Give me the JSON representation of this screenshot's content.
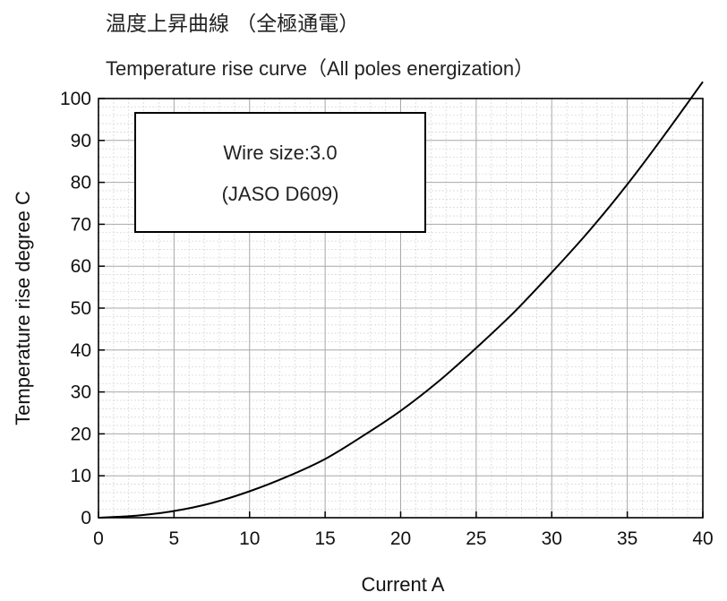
{
  "chart_data": {
    "type": "line",
    "title_jp": "温度上昇曲線 （全極通電）",
    "title": "Temperature rise curve（All poles energization）",
    "xlabel": "Current  A",
    "ylabel": "Temperature rise  degree C",
    "xlim": [
      0,
      40
    ],
    "ylim": [
      0,
      100
    ],
    "xticks": [
      0,
      5,
      10,
      15,
      20,
      25,
      30,
      35,
      40
    ],
    "yticks": [
      0,
      10,
      20,
      30,
      40,
      50,
      60,
      70,
      80,
      90,
      100
    ],
    "grid": true,
    "annotation": {
      "line1": "Wire size:3.0",
      "line2": "(JASO D609)"
    },
    "series": [
      {
        "x": [
          0,
          2.5,
          5,
          7.5,
          10,
          12.5,
          15,
          17.5,
          20,
          22.5,
          25,
          27.5,
          30,
          32.5,
          35,
          37.5,
          40
        ],
        "y": [
          0,
          0.5,
          1.6,
          3.5,
          6.3,
          9.8,
          14,
          19.5,
          25.5,
          32.5,
          40.5,
          49,
          58.5,
          68.5,
          79.5,
          91.5,
          104
        ]
      }
    ]
  }
}
